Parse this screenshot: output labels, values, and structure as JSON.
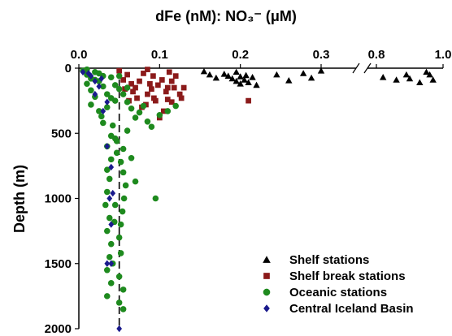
{
  "chart_data": {
    "type": "scatter",
    "title": "dFe (nM): NO₃⁻ (μM)",
    "ylabel": "Depth (m)",
    "xlabel": "",
    "x_axis_position": "top",
    "y_inverted": true,
    "xlim_main": [
      0,
      0.3
    ],
    "xlim_break": [
      0.8,
      1.0
    ],
    "ylim": [
      0,
      2000
    ],
    "x_ticks_main": [
      "0.0",
      "0.1",
      "0.2",
      "0.3"
    ],
    "x_ticks_break": [
      "0.8",
      "1.0"
    ],
    "y_ticks": [
      "0",
      "500",
      "1000",
      "1500",
      "2000"
    ],
    "grid": false,
    "axis_break": true,
    "reference_line": {
      "x": 0.05,
      "style": "dashed"
    },
    "legend_position": "bottom-right",
    "series": [
      {
        "name": "Shelf stations",
        "marker": "triangle",
        "color": "#000000",
        "points": [
          [
            0.155,
            25
          ],
          [
            0.162,
            50
          ],
          [
            0.17,
            75
          ],
          [
            0.185,
            60
          ],
          [
            0.19,
            80
          ],
          [
            0.195,
            100
          ],
          [
            0.2,
            65
          ],
          [
            0.205,
            90
          ],
          [
            0.21,
            110
          ],
          [
            0.2,
            120
          ],
          [
            0.215,
            70
          ],
          [
            0.195,
            30
          ],
          [
            0.22,
            130
          ],
          [
            0.245,
            50
          ],
          [
            0.26,
            95
          ],
          [
            0.278,
            40
          ],
          [
            0.288,
            75
          ],
          [
            0.3,
            20
          ],
          [
            0.18,
            45
          ],
          [
            0.207,
            55
          ],
          [
            0.82,
            70
          ],
          [
            0.86,
            90
          ],
          [
            0.89,
            50
          ],
          [
            0.93,
            110
          ],
          [
            0.95,
            30
          ],
          [
            0.97,
            90
          ],
          [
            0.96,
            50
          ],
          [
            0.9,
            80
          ]
        ]
      },
      {
        "name": "Shelf break stations",
        "marker": "square",
        "color": "#8B1A1A",
        "points": [
          [
            0.05,
            20
          ],
          [
            0.06,
            50
          ],
          [
            0.055,
            90
          ],
          [
            0.065,
            120
          ],
          [
            0.07,
            150
          ],
          [
            0.075,
            100
          ],
          [
            0.08,
            40
          ],
          [
            0.085,
            200
          ],
          [
            0.09,
            160
          ],
          [
            0.095,
            250
          ],
          [
            0.1,
            380
          ],
          [
            0.105,
            330
          ],
          [
            0.11,
            240
          ],
          [
            0.115,
            100
          ],
          [
            0.12,
            60
          ],
          [
            0.118,
            150
          ],
          [
            0.125,
            200
          ],
          [
            0.13,
            150
          ],
          [
            0.067,
            180
          ],
          [
            0.072,
            230
          ],
          [
            0.083,
            280
          ],
          [
            0.092,
            60
          ],
          [
            0.098,
            130
          ],
          [
            0.108,
            180
          ],
          [
            0.127,
            230
          ],
          [
            0.085,
            10
          ],
          [
            0.062,
            250
          ],
          [
            0.057,
            160
          ],
          [
            0.103,
            90
          ],
          [
            0.078,
            300
          ],
          [
            0.088,
            120
          ],
          [
            0.112,
            30
          ],
          [
            0.115,
            260
          ],
          [
            0.11,
            150
          ],
          [
            0.093,
            230
          ],
          [
            0.21,
            250
          ]
        ]
      },
      {
        "name": "Oceanic stations",
        "marker": "circle",
        "color": "#1E8A1E",
        "points": [
          [
            0.005,
            20
          ],
          [
            0.01,
            50
          ],
          [
            0.015,
            80
          ],
          [
            0.01,
            120
          ],
          [
            0.02,
            30
          ],
          [
            0.03,
            60
          ],
          [
            0.025,
            100
          ],
          [
            0.04,
            70
          ],
          [
            0.045,
            130
          ],
          [
            0.05,
            160
          ],
          [
            0.055,
            200
          ],
          [
            0.06,
            260
          ],
          [
            0.065,
            310
          ],
          [
            0.07,
            380
          ],
          [
            0.075,
            340
          ],
          [
            0.08,
            290
          ],
          [
            0.085,
            410
          ],
          [
            0.09,
            450
          ],
          [
            0.1,
            360
          ],
          [
            0.11,
            330
          ],
          [
            0.12,
            290
          ],
          [
            0.03,
            140
          ],
          [
            0.02,
            220
          ],
          [
            0.015,
            280
          ],
          [
            0.025,
            330
          ],
          [
            0.035,
            300
          ],
          [
            0.045,
            250
          ],
          [
            0.03,
            420
          ],
          [
            0.04,
            520
          ],
          [
            0.035,
            600
          ],
          [
            0.04,
            700
          ],
          [
            0.035,
            780
          ],
          [
            0.038,
            850
          ],
          [
            0.035,
            950
          ],
          [
            0.045,
            1050
          ],
          [
            0.038,
            1150
          ],
          [
            0.035,
            1250
          ],
          [
            0.04,
            1350
          ],
          [
            0.038,
            1450
          ],
          [
            0.035,
            1550
          ],
          [
            0.04,
            1650
          ],
          [
            0.035,
            1750
          ],
          [
            0.05,
            1800
          ],
          [
            0.055,
            1850
          ],
          [
            0.045,
            540
          ],
          [
            0.06,
            480
          ],
          [
            0.055,
            620
          ],
          [
            0.052,
            720
          ],
          [
            0.055,
            800
          ],
          [
            0.058,
            900
          ],
          [
            0.056,
            1000
          ],
          [
            0.054,
            1100
          ],
          [
            0.052,
            1200
          ],
          [
            0.05,
            1300
          ],
          [
            0.052,
            1420
          ],
          [
            0.05,
            1600
          ],
          [
            0.07,
            870
          ],
          [
            0.095,
            1000
          ],
          [
            0.065,
            690
          ],
          [
            0.015,
            170
          ],
          [
            0.025,
            40
          ],
          [
            0.01,
            10
          ],
          [
            0.035,
            200
          ],
          [
            0.028,
            370
          ],
          [
            0.06,
            150
          ],
          [
            0.05,
            60
          ],
          [
            0.042,
            440
          ],
          [
            0.047,
            560
          ],
          [
            0.044,
            1180
          ],
          [
            0.042,
            1500
          ],
          [
            0.055,
            1700
          ],
          [
            0.033,
            1050
          ],
          [
            0.047,
            650
          ],
          [
            0.04,
            230
          ],
          [
            0.02,
            90
          ]
        ]
      },
      {
        "name": "Central Iceland Basin",
        "marker": "diamond",
        "color": "#1A1A8C",
        "points": [
          [
            0.005,
            30
          ],
          [
            0.015,
            60
          ],
          [
            0.02,
            100
          ],
          [
            0.025,
            140
          ],
          [
            0.02,
            200
          ],
          [
            0.035,
            260
          ],
          [
            0.03,
            330
          ],
          [
            0.035,
            600
          ],
          [
            0.04,
            760
          ],
          [
            0.038,
            1000
          ],
          [
            0.04,
            1200
          ],
          [
            0.035,
            1500
          ],
          [
            0.04,
            1500
          ],
          [
            0.05,
            2000
          ],
          [
            0.012,
            40
          ],
          [
            0.028,
            80
          ],
          [
            0.042,
            960
          ]
        ]
      }
    ]
  }
}
